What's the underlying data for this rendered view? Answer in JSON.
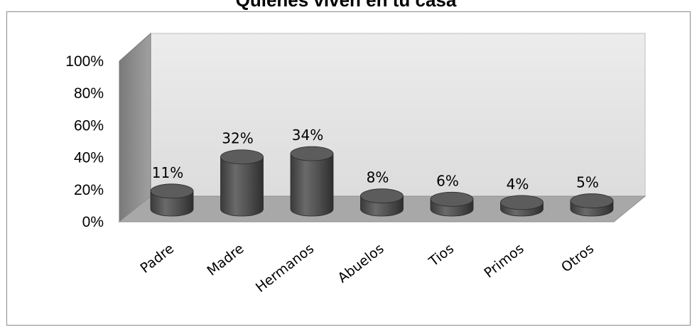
{
  "chart_data": {
    "type": "bar",
    "title": "Quienes viven en tu casa",
    "categories": [
      "Padre",
      "Madre",
      "Hermanos",
      "Abuelos",
      "Tios",
      "Primos",
      "Otros"
    ],
    "values": [
      11,
      32,
      34,
      8,
      6,
      4,
      5
    ],
    "data_labels": [
      "11%",
      "32%",
      "34%",
      "8%",
      "6%",
      "4%",
      "5%"
    ],
    "yticks": [
      "0%",
      "20%",
      "40%",
      "60%",
      "80%",
      "100%"
    ],
    "ylim": [
      0,
      100
    ],
    "xlabel": "",
    "ylabel": "",
    "grid": false,
    "legend": "none",
    "style": "3d-cylinder",
    "colors": {
      "bar": "#4d4d4d",
      "back_wall": "#e8e8e8",
      "side_wall": "#8c8c8c",
      "floor": "#a6a6a6"
    }
  }
}
